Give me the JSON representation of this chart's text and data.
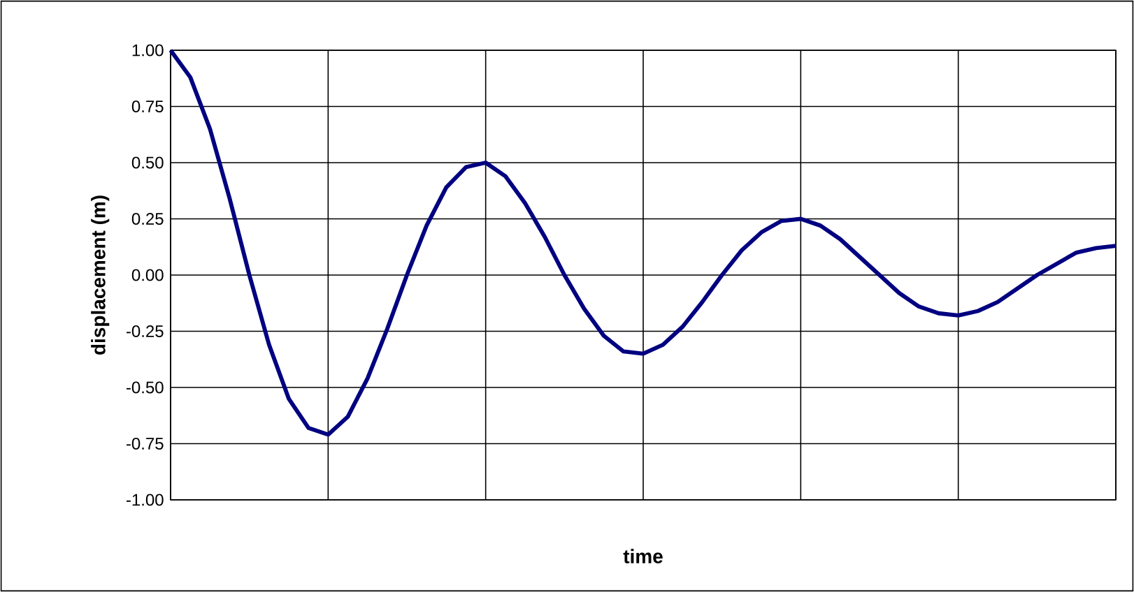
{
  "chart_data": {
    "type": "line",
    "xlabel": "time",
    "ylabel": "displacement (m)",
    "categories": [
      null,
      null,
      null,
      null,
      null,
      null,
      null,
      null,
      null,
      null,
      null,
      null,
      null,
      null,
      null,
      null,
      null,
      null,
      null,
      null,
      null,
      null,
      null,
      null,
      null,
      null,
      null,
      null,
      null,
      null,
      null,
      null,
      null,
      null,
      null,
      null,
      null,
      null,
      null,
      null,
      null,
      null,
      null,
      null,
      null,
      null,
      null,
      null,
      null
    ],
    "series": [
      {
        "color": "#000080",
        "values": [
          1.0,
          0.88,
          0.65,
          0.34,
          0.0,
          -0.31,
          -0.55,
          -0.68,
          -0.71,
          -0.63,
          -0.46,
          -0.24,
          0.0,
          0.22,
          0.39,
          0.48,
          0.5,
          0.44,
          0.32,
          0.17,
          0.0,
          -0.15,
          -0.27,
          -0.34,
          -0.35,
          -0.31,
          -0.23,
          -0.12,
          0.0,
          0.11,
          0.19,
          0.24,
          0.25,
          0.22,
          0.16,
          0.08,
          0.0,
          -0.08,
          -0.14,
          -0.17,
          -0.18,
          -0.16,
          -0.12,
          -0.06,
          0.0,
          0.05,
          0.1,
          0.12,
          0.13
        ]
      }
    ],
    "ylim": [
      -1,
      1
    ],
    "yticks": [
      {
        "value": -1,
        "label": "-1.00"
      },
      {
        "value": -0.75,
        "label": "-0.75"
      },
      {
        "value": -0.5,
        "label": "-0.50"
      },
      {
        "value": -0.25,
        "label": "-0.25"
      },
      {
        "value": 0,
        "label": "0.00"
      },
      {
        "value": 0.25,
        "label": "0.25"
      },
      {
        "value": 0.5,
        "label": "0.50"
      },
      {
        "value": 0.75,
        "label": "0.75"
      },
      {
        "value": 1,
        "label": "1.00"
      }
    ],
    "grid": true,
    "marker": "none",
    "line_style": "solid"
  }
}
